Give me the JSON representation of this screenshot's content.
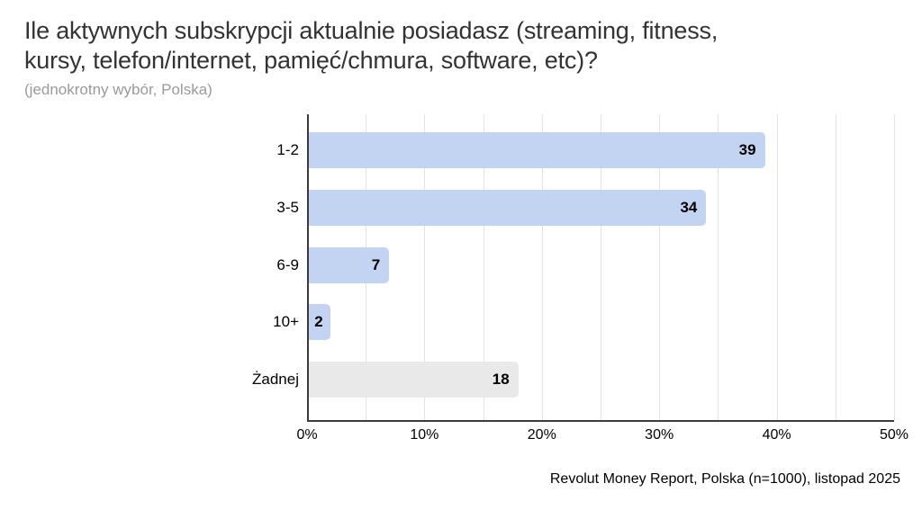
{
  "header": {
    "title_line1": "Ile aktywnych subskrypcji aktualnie posiadasz (streaming, fitness,",
    "title_line2": "kursy, telefon/internet, pamięć/chmura, software, etc)?",
    "subtitle": "(jednokrotny wybór, Polska)"
  },
  "footer": {
    "source": "Revolut Money Report, Polska (n=1000), listopad 2025"
  },
  "colors": {
    "bar_blue": "#c3d4f2",
    "bar_gray": "#e9e9e9",
    "axis_line": "#3b3b3b",
    "gridline": "#e2e2e2",
    "title_text": "#333333",
    "subtitle_text": "#9a9a9a"
  },
  "chart_data": {
    "type": "bar",
    "orientation": "horizontal",
    "title": "Ile aktywnych subskrypcji aktualnie posiadasz (streaming, fitness, kursy, telefon/internet, pamięć/chmura, software, etc)?",
    "subtitle": "(jednokrotny wybór, Polska)",
    "categories": [
      "1-2",
      "3-5",
      "6-9",
      "10+",
      "Żadnej"
    ],
    "values": [
      39,
      34,
      7,
      2,
      18
    ],
    "unit": "%",
    "bar_colors": [
      "#c3d4f2",
      "#c3d4f2",
      "#c3d4f2",
      "#c3d4f2",
      "#e9e9e9"
    ],
    "xlim": [
      0,
      50
    ],
    "gridline_step": 5,
    "x_tick_labels": [
      "0%",
      "10%",
      "20%",
      "30%",
      "40%",
      "50%"
    ],
    "grid": true,
    "legend": "none",
    "annotation": "Revolut Money Report, Polska (n=1000), listopad 2025"
  }
}
